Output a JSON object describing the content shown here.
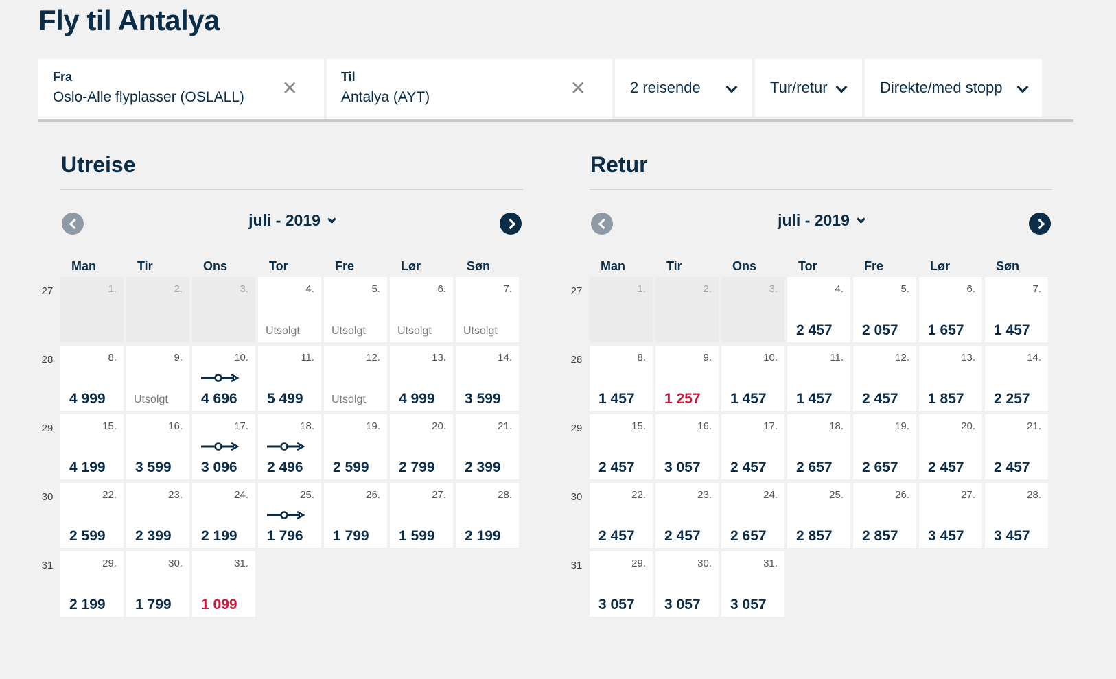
{
  "page": {
    "title": "Fly til Antalya"
  },
  "search": {
    "from": {
      "label": "Fra",
      "value": "Oslo-Alle flyplasser (OSLALL)"
    },
    "to": {
      "label": "Til",
      "value": "Antalya (AYT)"
    },
    "clear_glyph": "✕",
    "travellers": "2 reisende",
    "trip_type": "Tur/retur",
    "stops": "Direkte/med stopp"
  },
  "outbound": {
    "title": "Utreise",
    "month": "juli - 2019",
    "weekdays": [
      "Man",
      "Tir",
      "Ons",
      "Tor",
      "Fre",
      "Lør",
      "Søn"
    ],
    "weeks": [
      {
        "week": "27",
        "days": [
          {
            "day": "1.",
            "disabled": true
          },
          {
            "day": "2.",
            "disabled": true
          },
          {
            "day": "3.",
            "disabled": true
          },
          {
            "day": "4.",
            "soldout": "Utsolgt"
          },
          {
            "day": "5.",
            "soldout": "Utsolgt"
          },
          {
            "day": "6.",
            "soldout": "Utsolgt"
          },
          {
            "day": "7.",
            "soldout": "Utsolgt"
          }
        ]
      },
      {
        "week": "28",
        "days": [
          {
            "day": "8.",
            "price": "4 999"
          },
          {
            "day": "9.",
            "soldout": "Utsolgt"
          },
          {
            "day": "10.",
            "price": "4 696",
            "stop": true
          },
          {
            "day": "11.",
            "price": "5 499"
          },
          {
            "day": "12.",
            "soldout": "Utsolgt"
          },
          {
            "day": "13.",
            "price": "4 999"
          },
          {
            "day": "14.",
            "price": "3 599"
          }
        ]
      },
      {
        "week": "29",
        "days": [
          {
            "day": "15.",
            "price": "4 199"
          },
          {
            "day": "16.",
            "price": "3 599"
          },
          {
            "day": "17.",
            "price": "3 096",
            "stop": true
          },
          {
            "day": "18.",
            "price": "2 496",
            "stop": true
          },
          {
            "day": "19.",
            "price": "2 599"
          },
          {
            "day": "20.",
            "price": "2 799"
          },
          {
            "day": "21.",
            "price": "2 399"
          }
        ]
      },
      {
        "week": "30",
        "days": [
          {
            "day": "22.",
            "price": "2 599"
          },
          {
            "day": "23.",
            "price": "2 399"
          },
          {
            "day": "24.",
            "price": "2 199"
          },
          {
            "day": "25.",
            "price": "1 796",
            "stop": true
          },
          {
            "day": "26.",
            "price": "1 799"
          },
          {
            "day": "27.",
            "price": "1 599"
          },
          {
            "day": "28.",
            "price": "2 199"
          }
        ]
      },
      {
        "week": "31",
        "days": [
          {
            "day": "29.",
            "price": "2 199"
          },
          {
            "day": "30.",
            "price": "1 799"
          },
          {
            "day": "31.",
            "price": "1 099",
            "lowest": true
          }
        ]
      }
    ]
  },
  "return": {
    "title": "Retur",
    "month": "juli - 2019",
    "weekdays": [
      "Man",
      "Tir",
      "Ons",
      "Tor",
      "Fre",
      "Lør",
      "Søn"
    ],
    "weeks": [
      {
        "week": "27",
        "days": [
          {
            "day": "1.",
            "disabled": true
          },
          {
            "day": "2.",
            "disabled": true
          },
          {
            "day": "3.",
            "disabled": true
          },
          {
            "day": "4.",
            "price": "2 457"
          },
          {
            "day": "5.",
            "price": "2 057"
          },
          {
            "day": "6.",
            "price": "1 657"
          },
          {
            "day": "7.",
            "price": "1 457"
          }
        ]
      },
      {
        "week": "28",
        "days": [
          {
            "day": "8.",
            "price": "1 457"
          },
          {
            "day": "9.",
            "price": "1 257",
            "lowest": true
          },
          {
            "day": "10.",
            "price": "1 457"
          },
          {
            "day": "11.",
            "price": "1 457"
          },
          {
            "day": "12.",
            "price": "2 457"
          },
          {
            "day": "13.",
            "price": "1 857"
          },
          {
            "day": "14.",
            "price": "2 257"
          }
        ]
      },
      {
        "week": "29",
        "days": [
          {
            "day": "15.",
            "price": "2 457"
          },
          {
            "day": "16.",
            "price": "3 057"
          },
          {
            "day": "17.",
            "price": "2 457"
          },
          {
            "day": "18.",
            "price": "2 657"
          },
          {
            "day": "19.",
            "price": "2 657"
          },
          {
            "day": "20.",
            "price": "2 457"
          },
          {
            "day": "21.",
            "price": "2 457"
          }
        ]
      },
      {
        "week": "30",
        "days": [
          {
            "day": "22.",
            "price": "2 457"
          },
          {
            "day": "23.",
            "price": "2 457"
          },
          {
            "day": "24.",
            "price": "2 657"
          },
          {
            "day": "25.",
            "price": "2 857"
          },
          {
            "day": "26.",
            "price": "2 857"
          },
          {
            "day": "27.",
            "price": "3 457"
          },
          {
            "day": "28.",
            "price": "3 457"
          }
        ]
      },
      {
        "week": "31",
        "days": [
          {
            "day": "29.",
            "price": "3 057"
          },
          {
            "day": "30.",
            "price": "3 057"
          },
          {
            "day": "31.",
            "price": "3 057"
          }
        ]
      }
    ]
  },
  "colors": {
    "brand": "#0b2d48",
    "lowest_price": "#d0173a",
    "background": "#f1f1f1"
  }
}
